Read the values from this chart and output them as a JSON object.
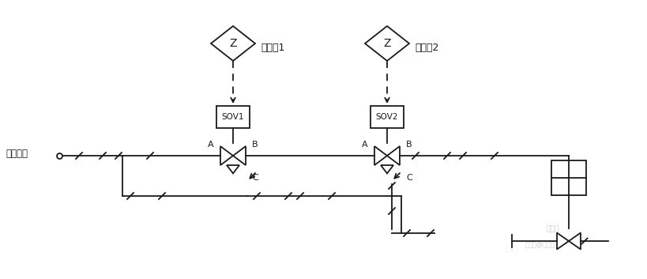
{
  "bg_color": "#ffffff",
  "line_color": "#1a1a1a",
  "fig_width": 8.2,
  "fig_height": 3.53,
  "dpi": 100,
  "label_em1": "电磁阀1",
  "label_em2": "电磁阀2",
  "label_instrument_air": "仪表空气",
  "label_sov1": "SOV1",
  "label_sov2": "SOV2"
}
